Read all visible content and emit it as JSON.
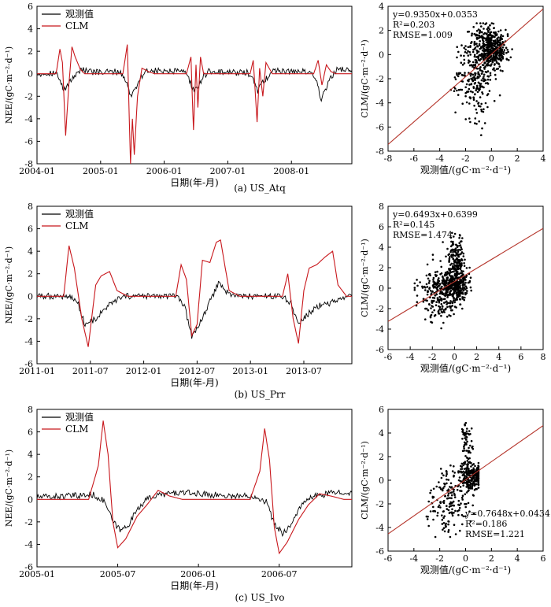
{
  "chart_data": [
    {
      "panel": "a",
      "type": "line",
      "xlabel": "日期(年-月)",
      "ylabel": "NEE/(gC·m⁻²·d⁻¹)",
      "caption": "(a) US_Atq",
      "xlim": [
        2004.0,
        2008.95
      ],
      "ylim": [
        -8,
        6
      ],
      "xticks": [
        2004.0,
        2005.0,
        2006.0,
        2007.0,
        2008.0
      ],
      "xtick_labels": [
        "2004-01",
        "2005-01",
        "2006-01",
        "2007-01",
        "2008-01"
      ],
      "yticks": [
        -8,
        -6,
        -4,
        -2,
        0,
        2,
        4,
        6
      ],
      "ytick_labels": [
        "-8",
        "-6",
        "-4",
        "-2",
        "0",
        "2",
        "4",
        "6"
      ],
      "series": [
        {
          "name": "观测值",
          "color": "#000000",
          "x": [
            2004.0,
            2004.3,
            2004.35,
            2004.42,
            2004.48,
            2004.55,
            2004.62,
            2004.7,
            2004.8,
            2005.0,
            2005.3,
            2005.4,
            2005.47,
            2005.55,
            2005.62,
            2005.7,
            2005.8,
            2006.0,
            2006.3,
            2006.4,
            2006.47,
            2006.55,
            2006.62,
            2006.7,
            2006.8,
            2007.0,
            2007.3,
            2007.4,
            2007.47,
            2007.55,
            2007.62,
            2007.7,
            2007.8,
            2008.0,
            2008.3,
            2008.4,
            2008.47,
            2008.55,
            2008.62,
            2008.7,
            2008.8,
            2008.95
          ],
          "y": [
            0.0,
            0.1,
            -0.5,
            -1.5,
            -1.0,
            -0.5,
            0.1,
            0.4,
            0.2,
            0.1,
            0.2,
            -0.6,
            -2.0,
            -1.2,
            -0.4,
            0.2,
            0.3,
            0.2,
            0.2,
            -0.6,
            -1.6,
            -1.0,
            -0.2,
            0.2,
            0.2,
            0.1,
            0.1,
            -0.6,
            -1.5,
            -0.8,
            -0.3,
            0.2,
            0.3,
            0.2,
            0.2,
            -0.8,
            -2.3,
            -1.2,
            -0.3,
            0.3,
            0.4,
            0.3
          ]
        },
        {
          "name": "CLM",
          "color": "#c8171c",
          "x": [
            2004.0,
            2004.1,
            2004.3,
            2004.36,
            2004.4,
            2004.45,
            2004.5,
            2004.55,
            2004.6,
            2004.68,
            2004.75,
            2004.85,
            2005.0,
            2005.2,
            2005.35,
            2005.42,
            2005.47,
            2005.5,
            2005.53,
            2005.58,
            2005.65,
            2005.75,
            2005.85,
            2006.0,
            2006.2,
            2006.35,
            2006.42,
            2006.46,
            2006.5,
            2006.53,
            2006.57,
            2006.62,
            2006.7,
            2006.8,
            2007.0,
            2007.2,
            2007.35,
            2007.4,
            2007.46,
            2007.5,
            2007.55,
            2007.6,
            2007.7,
            2007.8,
            2008.0,
            2008.2,
            2008.35,
            2008.42,
            2008.48,
            2008.55,
            2008.62,
            2008.7,
            2008.8,
            2008.95
          ],
          "y": [
            0.0,
            0.0,
            0.0,
            2.2,
            1.0,
            -5.5,
            -1.0,
            2.4,
            1.5,
            0.4,
            0.0,
            0.0,
            0.0,
            0.0,
            0.0,
            2.6,
            -8.0,
            -4.0,
            -7.2,
            -2.0,
            0.5,
            0.2,
            0.0,
            0.0,
            0.0,
            0.0,
            1.5,
            -5.0,
            0.8,
            -3.0,
            1.5,
            0.0,
            0.0,
            0.0,
            0.0,
            0.0,
            0.0,
            1.2,
            -4.3,
            0.5,
            -2.0,
            1.0,
            0.0,
            0.0,
            0.0,
            0.0,
            0.0,
            1.2,
            -1.0,
            0.8,
            0.2,
            0.0,
            0.0,
            0.0
          ]
        }
      ],
      "legend": "top-left"
    },
    {
      "panel": "a-scatter",
      "type": "scatter",
      "xlabel": "观测值/(gC·m⁻²·d⁻¹)",
      "ylabel": "CLM/(gC·m⁻²·d⁻¹)",
      "xlim": [
        -8,
        4
      ],
      "ylim": [
        -8,
        4
      ],
      "xticks": [
        -8,
        -6,
        -4,
        -2,
        0,
        2,
        4
      ],
      "yticks": [
        -8,
        -6,
        -4,
        -2,
        0,
        2,
        4
      ],
      "xtick_labels": [
        "-8",
        "-6",
        "-4",
        "-2",
        "0",
        "2",
        "4"
      ],
      "ytick_labels": [
        "-8",
        "-6",
        "-4",
        "-2",
        "0",
        "2",
        "4"
      ],
      "fit": {
        "slope": 0.935,
        "intercept": 0.0353
      },
      "stats": [
        "y=0.9350x+0.0353",
        "R²=0.203",
        "RMSE=1.009"
      ],
      "stats_position": "top-left",
      "cloud": [
        {
          "cx": 0.1,
          "cy": 0.3,
          "sx": 0.5,
          "sy": 0.7,
          "n": 330
        },
        {
          "cx": -1.3,
          "cy": -1.6,
          "sx": 0.7,
          "sy": 1.8,
          "n": 250
        },
        {
          "cx": -0.3,
          "cy": 1.4,
          "sx": 0.6,
          "sy": 0.6,
          "n": 120
        }
      ],
      "seed": 11,
      "xclip": [
        -3.6,
        1.6
      ],
      "yclip": [
        -7.5,
        2.6
      ]
    },
    {
      "panel": "b",
      "type": "line",
      "xlabel": "日期(年-月)",
      "ylabel": "NEE/(gC·m⁻²·d⁻¹)",
      "caption": "(b) US_Prr",
      "xlim": [
        2011.0,
        2013.95
      ],
      "ylim": [
        -6,
        8
      ],
      "xticks": [
        2011.0,
        2011.5,
        2012.0,
        2012.5,
        2013.0,
        2013.5
      ],
      "xtick_labels": [
        "2011-01",
        "2011-07",
        "2012-01",
        "2012-07",
        "2013-01",
        "2013-07"
      ],
      "yticks": [
        -6,
        -4,
        -2,
        0,
        2,
        4,
        6,
        8
      ],
      "ytick_labels": [
        "-6",
        "-4",
        "-2",
        "0",
        "2",
        "4",
        "6",
        "8"
      ],
      "series": [
        {
          "name": "观测值",
          "color": "#000000",
          "x": [
            2011.0,
            2011.3,
            2011.38,
            2011.45,
            2011.55,
            2011.65,
            2011.75,
            2011.85,
            2012.0,
            2012.3,
            2012.38,
            2012.45,
            2012.55,
            2012.62,
            2012.7,
            2012.8,
            2012.9,
            2013.0,
            2013.3,
            2013.38,
            2013.45,
            2013.55,
            2013.65,
            2013.75,
            2013.85,
            2013.95
          ],
          "y": [
            0.0,
            0.0,
            -0.5,
            -2.5,
            -2.0,
            -1.0,
            -0.3,
            0.0,
            0.0,
            0.0,
            -0.8,
            -3.6,
            -2.0,
            -0.5,
            1.2,
            0.2,
            0.0,
            0.0,
            0.0,
            -0.6,
            -2.5,
            -1.5,
            -0.8,
            -0.6,
            -0.3,
            0.0
          ]
        },
        {
          "name": "CLM",
          "color": "#c8171c",
          "x": [
            2011.0,
            2011.25,
            2011.3,
            2011.35,
            2011.42,
            2011.48,
            2011.55,
            2011.6,
            2011.68,
            2011.75,
            2011.85,
            2012.0,
            2012.3,
            2012.35,
            2012.4,
            2012.45,
            2012.5,
            2012.55,
            2012.62,
            2012.68,
            2012.72,
            2012.8,
            2012.9,
            2013.0,
            2013.3,
            2013.35,
            2013.4,
            2013.45,
            2013.5,
            2013.55,
            2013.62,
            2013.7,
            2013.77,
            2013.82,
            2013.9,
            2013.95
          ],
          "y": [
            0.0,
            0.0,
            4.5,
            2.5,
            -2.0,
            -4.5,
            1.0,
            1.8,
            2.2,
            0.5,
            0.0,
            0.0,
            0.0,
            2.8,
            1.5,
            -3.5,
            -2.5,
            3.2,
            3.0,
            4.8,
            5.0,
            0.5,
            0.0,
            0.0,
            0.0,
            2.0,
            -2.0,
            -4.2,
            0.5,
            2.5,
            2.8,
            3.5,
            4.0,
            1.0,
            0.0,
            0.0
          ]
        }
      ],
      "legend": "top-left"
    },
    {
      "panel": "b-scatter",
      "type": "scatter",
      "xlabel": "观测值/(gC·m⁻²·d⁻¹)",
      "ylabel": "CLM/(gC·m⁻²·d⁻¹)",
      "xlim": [
        -6,
        8
      ],
      "ylim": [
        -6,
        8
      ],
      "xticks": [
        -6,
        -4,
        -2,
        0,
        2,
        4,
        6,
        8
      ],
      "yticks": [
        -6,
        -4,
        -2,
        0,
        2,
        4,
        6,
        8
      ],
      "xtick_labels": [
        "-6",
        "-4",
        "-2",
        "0",
        "2",
        "4",
        "6",
        "8"
      ],
      "ytick_labels": [
        "-6",
        "-4",
        "-2",
        "0",
        "2",
        "4",
        "6",
        "8"
      ],
      "fit": {
        "slope": 0.6493,
        "intercept": 0.6399
      },
      "stats": [
        "y=0.6493x+0.6399",
        "R²=0.145",
        "RMSE=1.474"
      ],
      "stats_position": "top-left",
      "cloud": [
        {
          "cx": 0.0,
          "cy": 0.2,
          "sx": 0.6,
          "sy": 0.8,
          "n": 320
        },
        {
          "cx": -1.6,
          "cy": -0.6,
          "sx": 0.9,
          "sy": 1.4,
          "n": 230
        },
        {
          "cx": 0.2,
          "cy": 2.8,
          "sx": 0.4,
          "sy": 1.1,
          "n": 150
        }
      ],
      "seed": 23,
      "xclip": [
        -3.6,
        1.8
      ],
      "yclip": [
        -4.6,
        5.4
      ]
    },
    {
      "panel": "c",
      "type": "line",
      "xlabel": "日期(年-月)",
      "ylabel": "NEE/(gC·m⁻²·d⁻¹)",
      "caption": "(c) US_Ivo",
      "xlim": [
        2005.0,
        2006.95
      ],
      "ylim": [
        -6,
        8
      ],
      "xticks": [
        2005.0,
        2005.5,
        2006.0,
        2006.5
      ],
      "xtick_labels": [
        "2005-01",
        "2005-07",
        "2006-01",
        "2006-07"
      ],
      "yticks": [
        -6,
        -4,
        -2,
        0,
        2,
        4,
        6,
        8
      ],
      "ytick_labels": [
        "-6",
        "-4",
        "-2",
        "0",
        "2",
        "4",
        "6",
        "8"
      ],
      "series": [
        {
          "name": "观测值",
          "color": "#000000",
          "x": [
            2005.0,
            2005.2,
            2005.35,
            2005.42,
            2005.47,
            2005.52,
            2005.58,
            2005.62,
            2005.7,
            2005.8,
            2005.9,
            2006.0,
            2006.2,
            2006.35,
            2006.42,
            2006.47,
            2006.52,
            2006.58,
            2006.62,
            2006.7,
            2006.8,
            2006.9,
            2006.95
          ],
          "y": [
            0.2,
            0.3,
            0.4,
            -0.2,
            -2.0,
            -2.8,
            -2.0,
            -0.8,
            0.2,
            0.5,
            0.6,
            0.5,
            0.3,
            0.3,
            -0.2,
            -2.2,
            -3.0,
            -2.2,
            -0.8,
            0.2,
            0.5,
            0.7,
            0.6
          ]
        },
        {
          "name": "CLM",
          "color": "#c8171c",
          "x": [
            2005.0,
            2005.2,
            2005.32,
            2005.38,
            2005.41,
            2005.44,
            2005.47,
            2005.5,
            2005.55,
            2005.62,
            2005.68,
            2005.75,
            2005.82,
            2005.9,
            2006.0,
            2006.2,
            2006.32,
            2006.38,
            2006.41,
            2006.44,
            2006.47,
            2006.5,
            2006.55,
            2006.62,
            2006.68,
            2006.75,
            2006.82,
            2006.9,
            2006.95
          ],
          "y": [
            0.0,
            0.0,
            0.0,
            3.0,
            7.0,
            4.0,
            -2.0,
            -4.3,
            -3.5,
            -1.5,
            -0.5,
            0.8,
            0.3,
            0.0,
            0.0,
            0.0,
            0.0,
            2.5,
            6.3,
            3.5,
            -2.5,
            -4.8,
            -3.8,
            -1.8,
            -0.5,
            0.5,
            0.3,
            0.0,
            0.0
          ]
        }
      ],
      "legend": "top-left"
    },
    {
      "panel": "c-scatter",
      "type": "scatter",
      "xlabel": "观测值/(gC·m⁻²·d⁻¹)",
      "ylabel": "CLM/(gC·m⁻²·d⁻¹)",
      "xlim": [
        -6,
        6
      ],
      "ylim": [
        -6,
        6
      ],
      "xticks": [
        -6,
        -4,
        -2,
        0,
        2,
        4,
        6
      ],
      "yticks": [
        -6,
        -4,
        -2,
        0,
        2,
        4,
        6
      ],
      "xtick_labels": [
        "-6",
        "-4",
        "-2",
        "0",
        "2",
        "4",
        "6"
      ],
      "ytick_labels": [
        "-6",
        "-4",
        "-2",
        "0",
        "2",
        "4",
        "6"
      ],
      "fit": {
        "slope": 0.7648,
        "intercept": 0.0434
      },
      "stats": [
        "y=0.7648x+0.0434",
        "R²=0.186",
        "RMSE=1.221"
      ],
      "stats_position": "bottom-right",
      "cloud": [
        {
          "cx": 0.4,
          "cy": 0.4,
          "sx": 0.4,
          "sy": 0.6,
          "n": 230
        },
        {
          "cx": -1.2,
          "cy": -1.6,
          "sx": 0.8,
          "sy": 1.3,
          "n": 170
        },
        {
          "cx": 0.1,
          "cy": 3.5,
          "sx": 0.25,
          "sy": 1.2,
          "n": 60
        }
      ],
      "seed": 37,
      "xclip": [
        -3.2,
        1.0
      ],
      "yclip": [
        -4.8,
        5.8
      ]
    }
  ],
  "legend_labels": {
    "obs": "观测值",
    "clm": "CLM"
  }
}
